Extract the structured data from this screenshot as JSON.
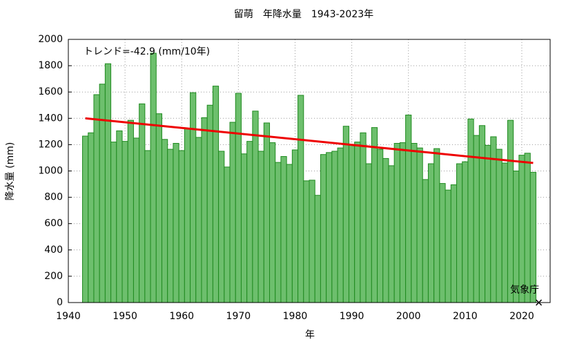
{
  "chart_data": {
    "type": "bar",
    "title": "留萌　年降水量　1943-2023年",
    "xlabel": "年",
    "ylabel": "降水量 (mm)",
    "annotations": [
      "トレンド=-42.9 (mm/10年)",
      "気象庁"
    ],
    "x": [
      1943,
      1944,
      1945,
      1946,
      1947,
      1948,
      1949,
      1950,
      1951,
      1952,
      1953,
      1954,
      1955,
      1956,
      1957,
      1958,
      1959,
      1960,
      1961,
      1962,
      1963,
      1964,
      1965,
      1966,
      1967,
      1968,
      1969,
      1970,
      1971,
      1972,
      1973,
      1974,
      1975,
      1976,
      1977,
      1978,
      1979,
      1980,
      1981,
      1982,
      1983,
      1984,
      1985,
      1986,
      1987,
      1988,
      1989,
      1990,
      1991,
      1992,
      1993,
      1994,
      1995,
      1996,
      1997,
      1998,
      1999,
      2000,
      2001,
      2002,
      2003,
      2004,
      2005,
      2006,
      2007,
      2008,
      2009,
      2010,
      2011,
      2012,
      2013,
      2014,
      2015,
      2016,
      2017,
      2018,
      2019,
      2020,
      2021,
      2022
    ],
    "values": [
      1265,
      1290,
      1580,
      1660,
      1815,
      1220,
      1305,
      1225,
      1385,
      1250,
      1510,
      1155,
      1895,
      1435,
      1240,
      1165,
      1210,
      1155,
      1320,
      1595,
      1255,
      1405,
      1500,
      1645,
      1150,
      1030,
      1370,
      1590,
      1130,
      1225,
      1455,
      1150,
      1365,
      1215,
      1065,
      1110,
      1050,
      1160,
      1575,
      925,
      930,
      815,
      1125,
      1140,
      1150,
      1175,
      1340,
      1200,
      1220,
      1290,
      1055,
      1330,
      1165,
      1095,
      1040,
      1210,
      1215,
      1425,
      1210,
      1175,
      935,
      1055,
      1170,
      905,
      855,
      895,
      1055,
      1070,
      1395,
      1270,
      1345,
      1195,
      1260,
      1165,
      1060,
      1385,
      1000,
      1120,
      1135,
      990
    ],
    "color": "#6dbf6d",
    "edge_color": "#1f8a1f",
    "trend": {
      "x": [
        1943,
        2022
      ],
      "values": [
        1400,
        1061
      ],
      "color": "#ee0000"
    },
    "missing_x": [
      2023
    ],
    "xlim": [
      1940,
      2025
    ],
    "xticks": [
      1940,
      1950,
      1960,
      1970,
      1980,
      1990,
      2000,
      2010,
      2020
    ],
    "ylim": [
      0,
      2000
    ],
    "yticks": [
      0,
      200,
      400,
      600,
      800,
      1000,
      1200,
      1400,
      1600,
      1800,
      2000
    ],
    "grid": true
  }
}
